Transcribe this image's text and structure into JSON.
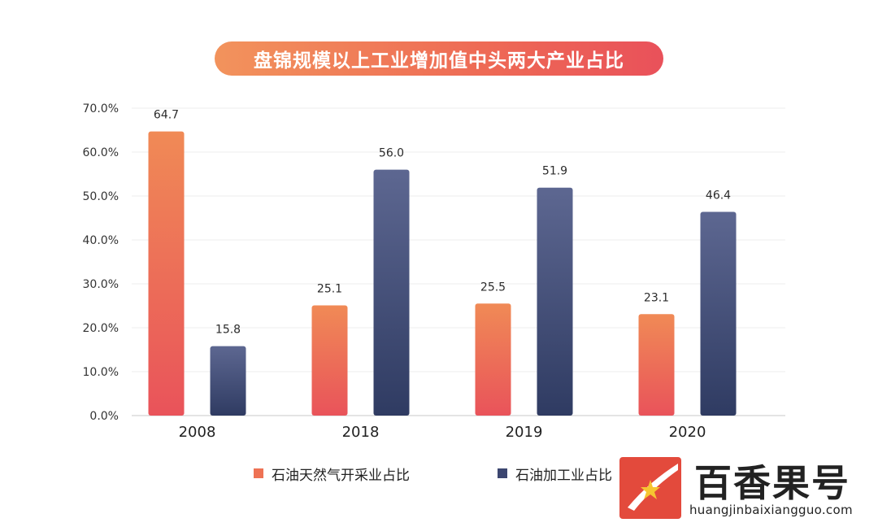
{
  "chart_data": {
    "type": "bar",
    "title": "盘锦规模以上工业增加值中头两大产业占比",
    "categories": [
      "2008",
      "2018",
      "2019",
      "2020"
    ],
    "series": [
      {
        "name": "石油天然气开采业占比",
        "values": [
          64.7,
          25.1,
          25.5,
          23.1
        ],
        "labels": [
          "64.7",
          "25.1",
          "25.5",
          "23.1"
        ],
        "color_top": "#f08a56",
        "color_bottom": "#e9535a"
      },
      {
        "name": "石油加工业占比",
        "values": [
          15.8,
          56.0,
          51.9,
          46.4
        ],
        "labels": [
          "15.8",
          "56.0",
          "51.9",
          "46.4"
        ],
        "color_top": "#5d6791",
        "color_bottom": "#2f3b62"
      }
    ],
    "ylim": [
      0,
      70
    ],
    "yticks": [
      0,
      10,
      20,
      30,
      40,
      50,
      60,
      70
    ],
    "ytick_labels": [
      "0.0%",
      "10.0%",
      "20.0%",
      "30.0%",
      "40.0%",
      "50.0%",
      "60.0%",
      "70.0%"
    ],
    "grid": true,
    "legend": "bottom"
  },
  "watermark": {
    "brand": "百香果号",
    "url": "huangjinbaixiangguo.com"
  }
}
